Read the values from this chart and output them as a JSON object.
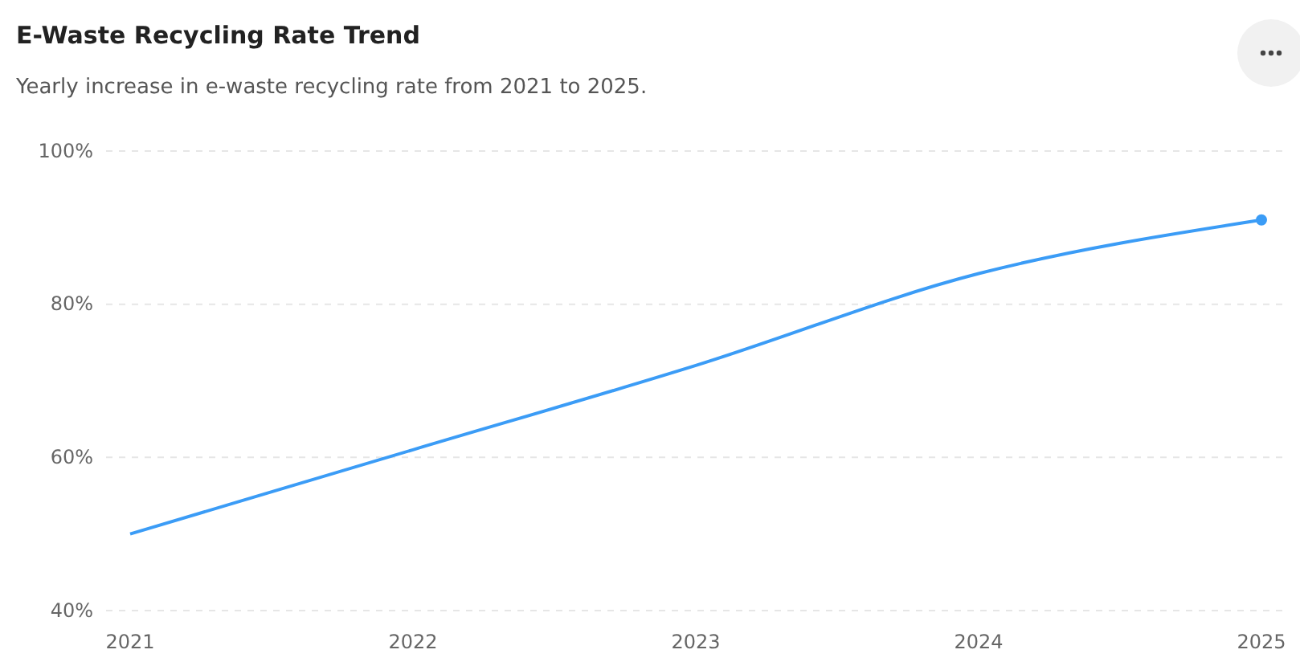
{
  "chart_data": {
    "type": "line",
    "title": "E-Waste Recycling Rate Trend",
    "subtitle": "Yearly increase in e-waste recycling rate from 2021 to 2025.",
    "categories": [
      "2021",
      "2022",
      "2023",
      "2024",
      "2025"
    ],
    "series": [
      {
        "color": "#3b9cf6",
        "values": [
          50,
          61,
          72,
          84,
          91
        ]
      },
      {
        "type": "scatter",
        "color": "#3b9cf6",
        "values": [
          null,
          null,
          null,
          null,
          91
        ]
      }
    ],
    "ylim": [
      40,
      100
    ],
    "yticks": [
      {
        "value": 40,
        "label": "40%"
      },
      {
        "value": 60,
        "label": "60%"
      },
      {
        "value": 80,
        "label": "80%"
      },
      {
        "value": 100,
        "label": "100%"
      }
    ],
    "grid": "y"
  }
}
